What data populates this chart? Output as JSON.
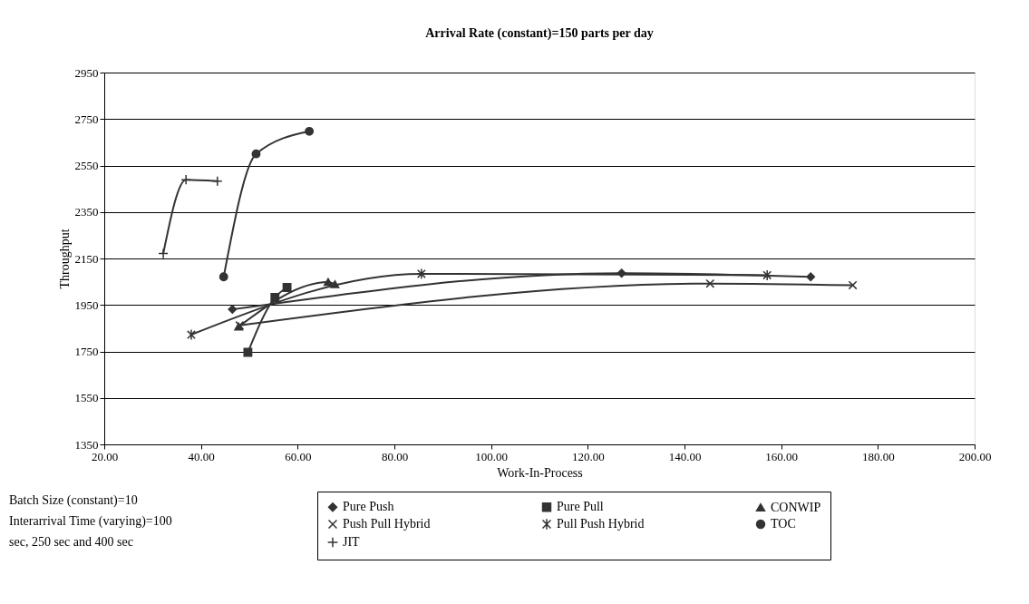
{
  "chart_data": {
    "type": "line",
    "title": "Arrival Rate (constant)=150 parts per day",
    "xlabel": "Work-In-Process",
    "ylabel": "Throughput",
    "xlim": [
      20,
      200
    ],
    "xticks": [
      {
        "value": 20,
        "label": "20.00"
      },
      {
        "value": 40,
        "label": "40.00"
      },
      {
        "value": 60,
        "label": "60.00"
      },
      {
        "value": 80,
        "label": "80.00"
      },
      {
        "value": 100,
        "label": "100.00"
      },
      {
        "value": 120,
        "label": "120.00"
      },
      {
        "value": 140,
        "label": "140.00"
      },
      {
        "value": 160,
        "label": "160.00"
      },
      {
        "value": 180,
        "label": "180.00"
      },
      {
        "value": 200,
        "label": "200.00"
      }
    ],
    "ylim": [
      1350,
      2950
    ],
    "yticks": [
      1350,
      1550,
      1750,
      1950,
      2150,
      2350,
      2550,
      2750,
      2950
    ],
    "grid": "y",
    "legend": "bottom",
    "annotations": [
      "Batch Size (constant)=10",
      "Interarrival Time (varying)=100 sec, 250 sec and 400 sec"
    ],
    "series": [
      {
        "name": "Pure Push",
        "color": "#333333",
        "marker": "diamond",
        "x": [
          46.5,
          127.0,
          166.1
        ],
        "values": [
          1931,
          2087,
          2071
        ]
      },
      {
        "name": "Pure Pull",
        "color": "#333333",
        "marker": "square",
        "x": [
          49.7,
          55.3,
          57.8
        ],
        "values": [
          1746,
          1982,
          2025
        ]
      },
      {
        "name": "CONWIP",
        "color": "#333333",
        "marker": "triangle",
        "x": [
          47.8,
          66.3,
          67.7
        ],
        "values": [
          1857,
          2049,
          2039
        ]
      },
      {
        "name": "Push Pull Hybrid",
        "color": "#333333",
        "marker": "cross",
        "x": [
          48.0,
          145.3,
          174.8
        ],
        "values": [
          1862,
          2042,
          2035
        ]
      },
      {
        "name": "Pull Push Hybrid",
        "color": "#333333",
        "marker": "cross",
        "x": [
          38.0,
          85.6,
          157.1
        ],
        "values": [
          1822,
          2084,
          2078
        ]
      },
      {
        "name": "TOC",
        "color": "#333333",
        "marker": "circle",
        "x": [
          44.7,
          51.4,
          62.4
        ],
        "values": [
          2071,
          2600,
          2697
        ]
      },
      {
        "name": "JIT",
        "color": "#333333",
        "marker": "plus",
        "x": [
          32.2,
          36.9,
          43.4
        ],
        "values": [
          2171,
          2489,
          2483
        ]
      }
    ]
  }
}
